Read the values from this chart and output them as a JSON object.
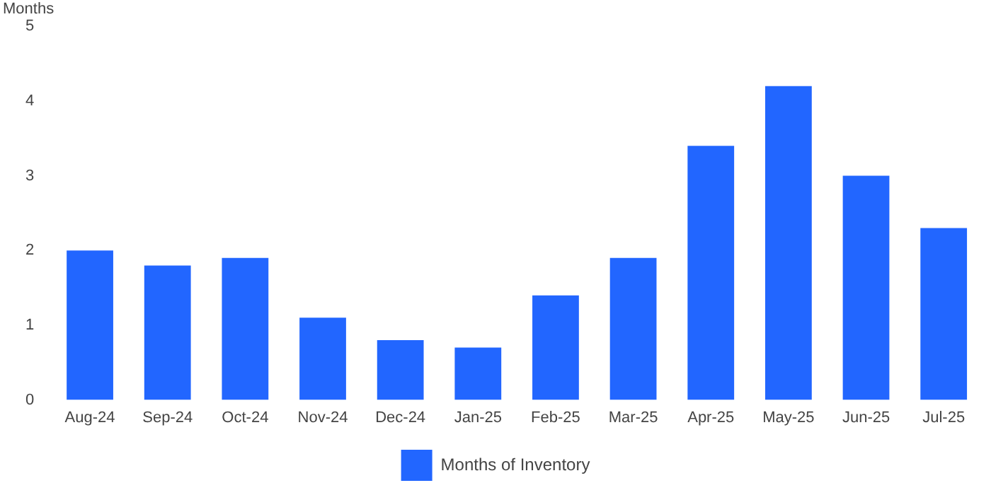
{
  "chart_data": {
    "type": "bar",
    "ylabel": "Months",
    "categories": [
      "Aug-24",
      "Sep-24",
      "Oct-24",
      "Nov-24",
      "Dec-24",
      "Jan-25",
      "Feb-25",
      "Mar-25",
      "Apr-25",
      "May-25",
      "Jun-25",
      "Jul-25"
    ],
    "series": [
      {
        "name": "Months of Inventory",
        "color": "#2266ff",
        "values": [
          2.0,
          1.8,
          1.9,
          1.1,
          0.8,
          0.7,
          1.4,
          1.9,
          3.4,
          4.2,
          3.0,
          2.3
        ]
      }
    ],
    "ylim": [
      0,
      5
    ],
    "yticks": [
      0,
      1,
      2,
      3,
      4,
      5
    ],
    "grid": false,
    "legend": "bottom"
  }
}
